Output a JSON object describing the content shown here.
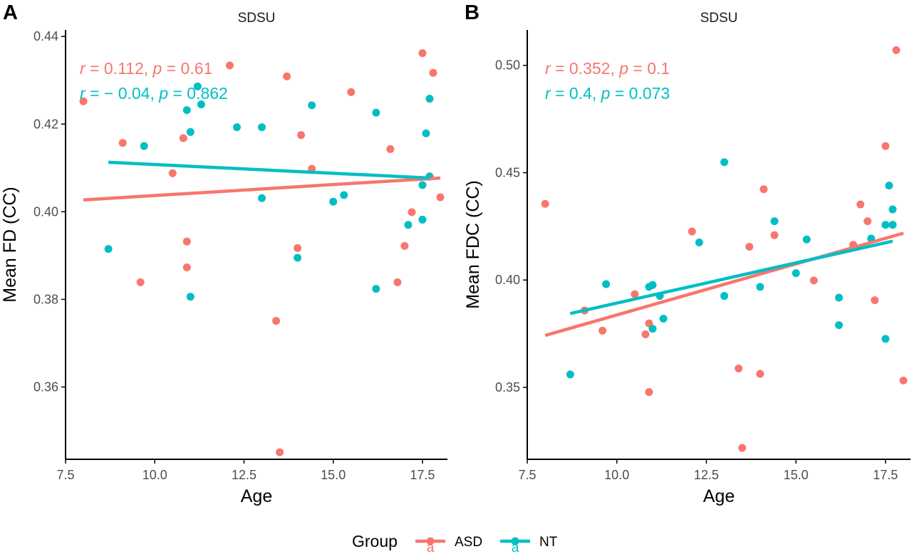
{
  "colors": {
    "ASD": "#F8766D",
    "NT": "#00BFC4",
    "axis": "#000000",
    "tick_text": "#4D4D4D"
  },
  "legend": {
    "title": "Group",
    "placement": "bottom",
    "items": [
      {
        "label": "ASD",
        "glyph": "a"
      },
      {
        "label": "NT",
        "glyph": "a"
      }
    ]
  },
  "chart_data": [
    {
      "panel_label": "A",
      "type": "scatter",
      "title": "SDSU",
      "xlabel": "Age",
      "ylabel": "Mean FD (CC)",
      "xlim": [
        7.5,
        18.2
      ],
      "ylim": [
        0.3435,
        0.4415
      ],
      "xticks": [
        "7.5",
        "10.0",
        "12.5",
        "15.0",
        "17.5"
      ],
      "xtick_values": [
        7.5,
        10,
        12.5,
        15,
        17.5
      ],
      "yticks": [
        "0.36",
        "0.38",
        "0.40",
        "0.42",
        "0.44"
      ],
      "ytick_values": [
        0.36,
        0.38,
        0.4,
        0.42,
        0.44
      ],
      "grid": false,
      "series": [
        {
          "name": "ASD",
          "points": [
            [
              8.0,
              0.4252
            ],
            [
              9.1,
              0.4157
            ],
            [
              9.6,
              0.3839
            ],
            [
              10.5,
              0.4088
            ],
            [
              10.8,
              0.4168
            ],
            [
              10.9,
              0.3932
            ],
            [
              10.9,
              0.3873
            ],
            [
              12.1,
              0.4334
            ],
            [
              13.4,
              0.3751
            ],
            [
              13.5,
              0.3451
            ],
            [
              13.7,
              0.4309
            ],
            [
              14.0,
              0.3917
            ],
            [
              14.1,
              0.4175
            ],
            [
              14.4,
              0.4098
            ],
            [
              15.5,
              0.4273
            ],
            [
              16.6,
              0.4143
            ],
            [
              16.8,
              0.3839
            ],
            [
              17.0,
              0.3922
            ],
            [
              17.2,
              0.3999
            ],
            [
              17.5,
              0.4362
            ],
            [
              17.7,
              0.4081
            ],
            [
              17.8,
              0.4317
            ],
            [
              18.0,
              0.4033
            ]
          ],
          "fit": [
            [
              8.0,
              0.4027
            ],
            [
              18.0,
              0.4077
            ]
          ],
          "annotation": {
            "r": "0.112",
            "p": "0.61"
          }
        },
        {
          "name": "NT",
          "points": [
            [
              8.7,
              0.3915
            ],
            [
              9.7,
              0.415
            ],
            [
              10.9,
              0.4232
            ],
            [
              11.0,
              0.4182
            ],
            [
              11.0,
              0.3806
            ],
            [
              11.2,
              0.4286
            ],
            [
              11.3,
              0.4245
            ],
            [
              12.3,
              0.4193
            ],
            [
              13.0,
              0.4193
            ],
            [
              13.0,
              0.4031
            ],
            [
              14.0,
              0.3895
            ],
            [
              14.4,
              0.4243
            ],
            [
              15.0,
              0.4023
            ],
            [
              15.3,
              0.4038
            ],
            [
              16.2,
              0.4226
            ],
            [
              16.2,
              0.3824
            ],
            [
              17.1,
              0.397
            ],
            [
              17.5,
              0.4061
            ],
            [
              17.5,
              0.3982
            ],
            [
              17.6,
              0.4179
            ],
            [
              17.7,
              0.4258
            ],
            [
              17.7,
              0.408
            ]
          ],
          "fit": [
            [
              8.7,
              0.4113
            ],
            [
              17.7,
              0.4077
            ]
          ],
          "annotation": {
            "r": "− 0.04",
            "p": "0.862"
          }
        }
      ]
    },
    {
      "panel_label": "B",
      "type": "scatter",
      "title": "SDSU",
      "xlabel": "Age",
      "ylabel": "Mean FDC (CC)",
      "xlim": [
        7.5,
        18.2
      ],
      "ylim": [
        0.3165,
        0.5165
      ],
      "xticks": [
        "7.5",
        "10.0",
        "12.5",
        "15.0",
        "17.5"
      ],
      "xtick_values": [
        7.5,
        10,
        12.5,
        15,
        17.5
      ],
      "yticks": [
        "0.35",
        "0.40",
        "0.45",
        "0.50"
      ],
      "ytick_values": [
        0.35,
        0.4,
        0.45,
        0.5
      ],
      "grid": false,
      "series": [
        {
          "name": "ASD",
          "points": [
            [
              8.0,
              0.4355
            ],
            [
              9.1,
              0.3858
            ],
            [
              9.6,
              0.3764
            ],
            [
              10.5,
              0.3934
            ],
            [
              10.8,
              0.3747
            ],
            [
              10.9,
              0.3798
            ],
            [
              10.9,
              0.3478
            ],
            [
              12.1,
              0.4226
            ],
            [
              13.4,
              0.3588
            ],
            [
              13.5,
              0.3218
            ],
            [
              13.7,
              0.4155
            ],
            [
              14.0,
              0.3563
            ],
            [
              14.1,
              0.4423
            ],
            [
              14.4,
              0.4209
            ],
            [
              15.5,
              0.3998
            ],
            [
              16.6,
              0.4164
            ],
            [
              16.8,
              0.4352
            ],
            [
              17.0,
              0.4274
            ],
            [
              17.2,
              0.3906
            ],
            [
              17.5,
              0.4624
            ],
            [
              17.7,
              0.4257
            ],
            [
              17.8,
              0.5071
            ],
            [
              18.0,
              0.3532
            ]
          ],
          "fit": [
            [
              8.0,
              0.3742
            ],
            [
              18.0,
              0.4218
            ]
          ],
          "annotation": {
            "r": "0.352",
            "p": "0.1"
          }
        },
        {
          "name": "NT",
          "points": [
            [
              8.7,
              0.356
            ],
            [
              9.7,
              0.3981
            ],
            [
              10.9,
              0.3968
            ],
            [
              11.0,
              0.3977
            ],
            [
              11.0,
              0.3773
            ],
            [
              11.2,
              0.3926
            ],
            [
              11.3,
              0.382
            ],
            [
              12.3,
              0.4175
            ],
            [
              13.0,
              0.4549
            ],
            [
              13.0,
              0.3926
            ],
            [
              14.0,
              0.3968
            ],
            [
              14.4,
              0.4274
            ],
            [
              15.0,
              0.4032
            ],
            [
              15.3,
              0.4189
            ],
            [
              16.2,
              0.3918
            ],
            [
              16.2,
              0.379
            ],
            [
              17.1,
              0.4193
            ],
            [
              17.5,
              0.3726
            ],
            [
              17.5,
              0.4257
            ],
            [
              17.6,
              0.444
            ],
            [
              17.7,
              0.4329
            ],
            [
              17.7,
              0.4257
            ]
          ],
          "fit": [
            [
              8.7,
              0.3844
            ],
            [
              17.7,
              0.4181
            ]
          ],
          "annotation": {
            "r": "0.4",
            "p": "0.073"
          }
        }
      ]
    }
  ]
}
